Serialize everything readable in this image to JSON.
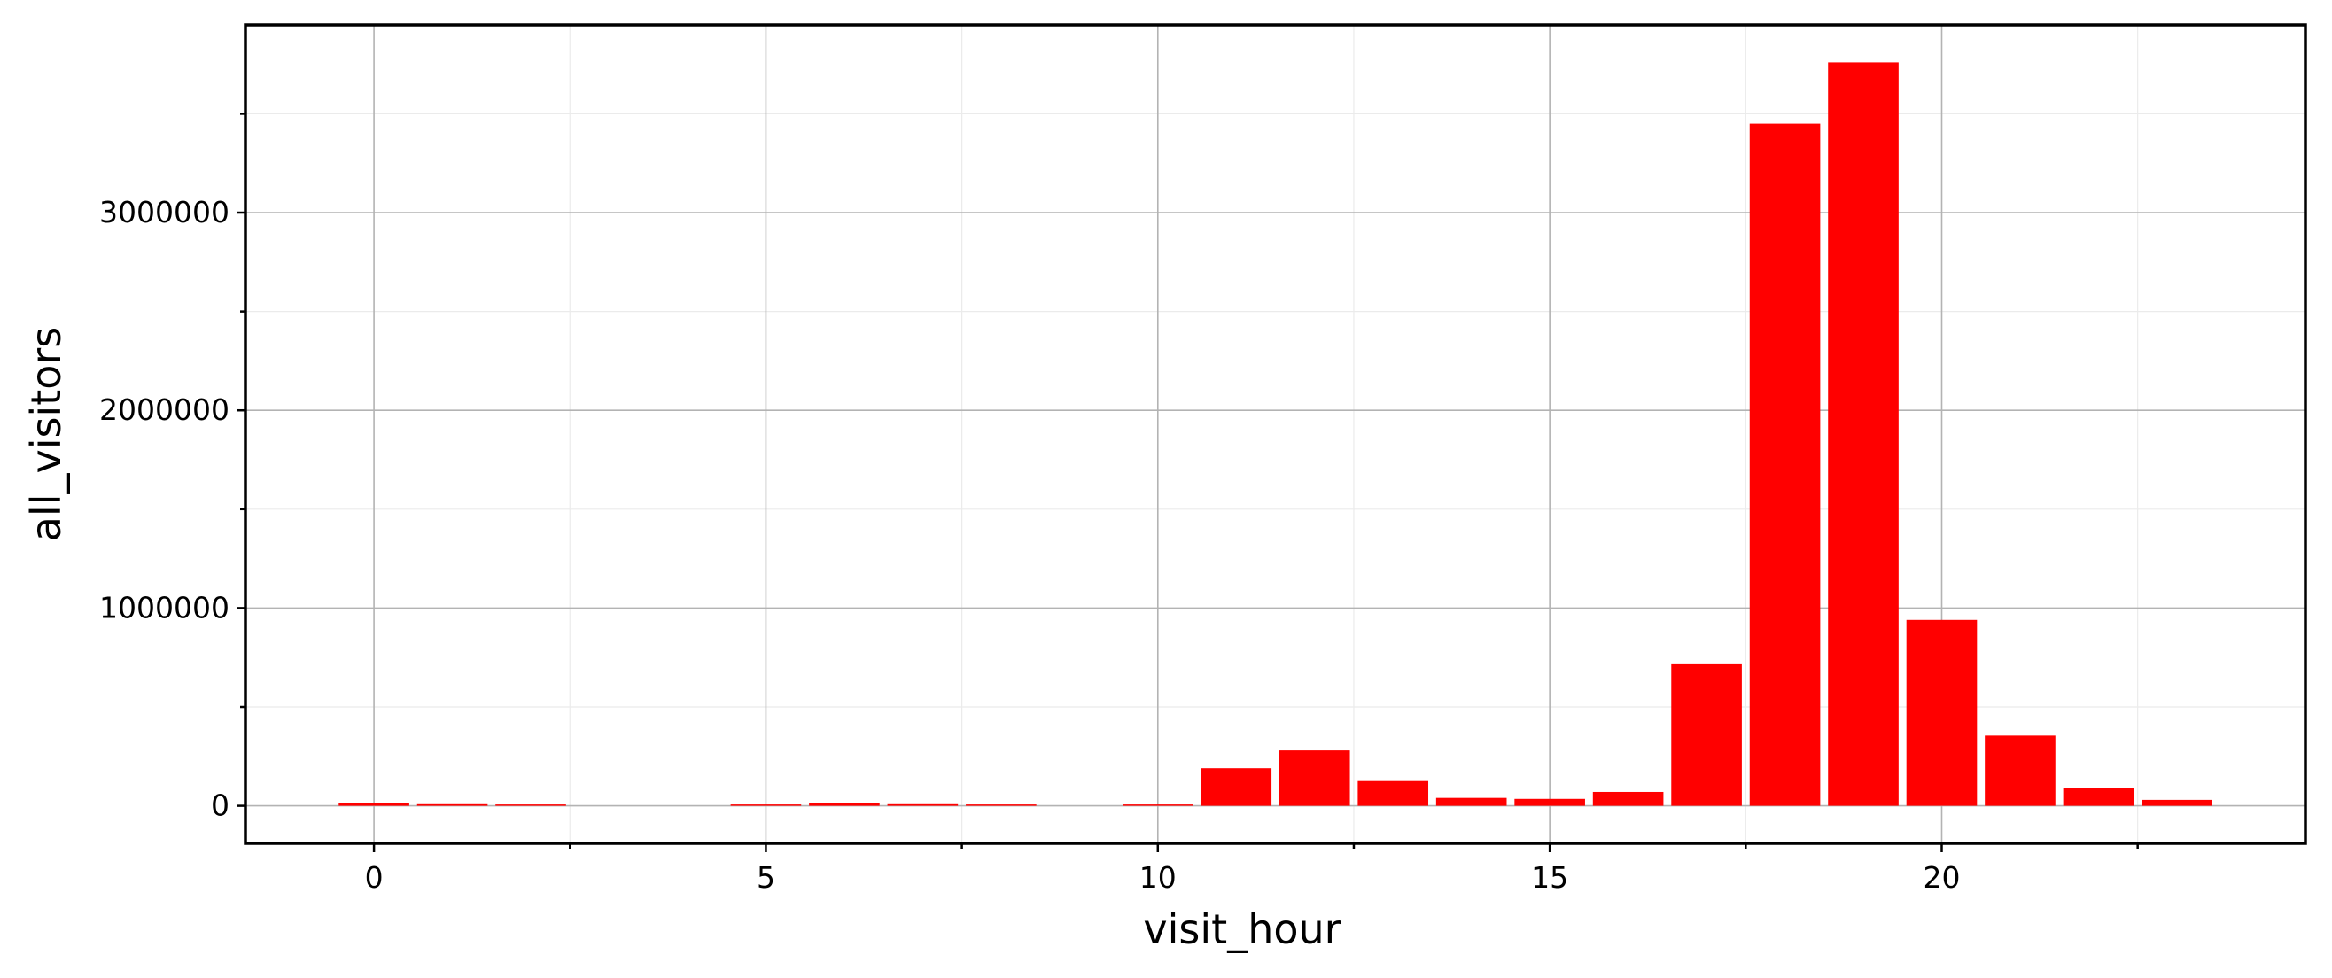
{
  "chart_data": {
    "type": "bar",
    "xlabel": "visit_hour",
    "ylabel": "all_visitors",
    "bar_color": "#ff0000",
    "x": [
      0,
      1,
      2,
      3,
      4,
      5,
      6,
      7,
      8,
      9,
      10,
      11,
      12,
      13,
      14,
      15,
      16,
      17,
      18,
      19,
      20,
      21,
      22,
      23
    ],
    "values": [
      12000,
      8000,
      5000,
      0,
      0,
      4000,
      12000,
      8000,
      5000,
      0,
      5000,
      190000,
      280000,
      125000,
      40000,
      35000,
      70000,
      720000,
      3450000,
      3760000,
      940000,
      355000,
      90000,
      30000
    ],
    "xlim": [
      -1.64,
      24.64
    ],
    "ylim": [
      -190000,
      3950000
    ],
    "x_ticks": [
      0,
      5,
      10,
      15,
      20
    ],
    "x_tick_labels": [
      "0",
      "5",
      "10",
      "15",
      "20"
    ],
    "y_ticks": [
      0,
      1000000,
      2000000,
      3000000
    ],
    "y_tick_labels": [
      "0",
      "1000000",
      "2000000",
      "3000000"
    ],
    "grid": true
  }
}
